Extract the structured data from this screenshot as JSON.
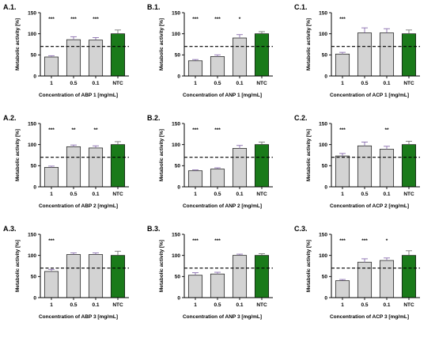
{
  "chart_data": [
    {
      "type": "bar",
      "panel_label": "A.1.",
      "categories": [
        "1",
        "0.5",
        "0.1",
        "NTC"
      ],
      "values": [
        45,
        86,
        85,
        100
      ],
      "errors": [
        3,
        7,
        6,
        9
      ],
      "significance": [
        "***",
        "***",
        "***",
        ""
      ],
      "xlabel": "Concentration of ABP 1 [mg/mL]",
      "ylabel": "Metabolic activity [%]",
      "ylim": [
        0,
        150
      ],
      "yticks": [
        "0",
        "50",
        "100",
        "150"
      ],
      "reference_line": 70,
      "bar_colors": [
        "#d3d3d3",
        "#d3d3d3",
        "#d3d3d3",
        "#1a7a1a"
      ]
    },
    {
      "type": "bar",
      "panel_label": "B.1.",
      "categories": [
        "1",
        "0.5",
        "0.1",
        "NTC"
      ],
      "values": [
        36,
        46,
        90,
        100
      ],
      "errors": [
        3,
        4,
        8,
        5
      ],
      "significance": [
        "***",
        "***",
        "*",
        ""
      ],
      "xlabel": "Concentration of ANP 1 [mg/mL]",
      "ylabel": "Metabolic activity [%]",
      "ylim": [
        0,
        150
      ],
      "yticks": [
        "0",
        "50",
        "100",
        "150"
      ],
      "reference_line": 70,
      "bar_colors": [
        "#d3d3d3",
        "#d3d3d3",
        "#d3d3d3",
        "#1a7a1a"
      ]
    },
    {
      "type": "bar",
      "panel_label": "C.1.",
      "categories": [
        "1",
        "0.5",
        "0.1",
        "NTC"
      ],
      "values": [
        52,
        102,
        102,
        100
      ],
      "errors": [
        4,
        12,
        10,
        9
      ],
      "significance": [
        "***",
        "",
        "",
        ""
      ],
      "xlabel": "Concentration of ACP 1 [mg/mL]",
      "ylabel": "Metabolic activity [%]",
      "ylim": [
        0,
        150
      ],
      "yticks": [
        "0",
        "50",
        "100",
        "150"
      ],
      "reference_line": 70,
      "bar_colors": [
        "#d3d3d3",
        "#d3d3d3",
        "#d3d3d3",
        "#1a7a1a"
      ]
    },
    {
      "type": "bar",
      "panel_label": "A.2.",
      "categories": [
        "1",
        "0.5",
        "0.1",
        "NTC"
      ],
      "values": [
        46,
        95,
        92,
        100
      ],
      "errors": [
        3,
        4,
        5,
        7
      ],
      "significance": [
        "***",
        "**",
        "**",
        ""
      ],
      "xlabel": "Concentration of ABP 2 [mg/mL]",
      "ylabel": "Metabolic activity [%]",
      "ylim": [
        0,
        150
      ],
      "yticks": [
        "0",
        "50",
        "100",
        "150"
      ],
      "reference_line": 70,
      "bar_colors": [
        "#d3d3d3",
        "#d3d3d3",
        "#d3d3d3",
        "#1a7a1a"
      ]
    },
    {
      "type": "bar",
      "panel_label": "B.2.",
      "categories": [
        "1",
        "0.5",
        "0.1",
        "NTC"
      ],
      "values": [
        38,
        42,
        91,
        100
      ],
      "errors": [
        2,
        3,
        7,
        6
      ],
      "significance": [
        "***",
        "***",
        "",
        ""
      ],
      "xlabel": "Concentration of ANP 2 [mg/mL]",
      "ylabel": "Metabolic activity [%]",
      "ylim": [
        0,
        150
      ],
      "yticks": [
        "0",
        "50",
        "100",
        "150"
      ],
      "reference_line": 70,
      "bar_colors": [
        "#d3d3d3",
        "#d3d3d3",
        "#d3d3d3",
        "#1a7a1a"
      ]
    },
    {
      "type": "bar",
      "panel_label": "C.2.",
      "categories": [
        "1",
        "0.5",
        "0.1",
        "NTC"
      ],
      "values": [
        73,
        97,
        89,
        100
      ],
      "errors": [
        6,
        9,
        7,
        8
      ],
      "significance": [
        "***",
        "",
        "**",
        ""
      ],
      "xlabel": "Concentration of ACP 2 [mg/mL]",
      "ylabel": "Metabolic activity [%]",
      "ylim": [
        0,
        150
      ],
      "yticks": [
        "0",
        "50",
        "100",
        "150"
      ],
      "reference_line": 70,
      "bar_colors": [
        "#d3d3d3",
        "#d3d3d3",
        "#d3d3d3",
        "#1a7a1a"
      ]
    },
    {
      "type": "bar",
      "panel_label": "A.3.",
      "categories": [
        "1",
        "0.5",
        "0.1",
        "NTC"
      ],
      "values": [
        62,
        102,
        102,
        100
      ],
      "errors": [
        5,
        4,
        4,
        10
      ],
      "significance": [
        "***",
        "",
        "",
        ""
      ],
      "xlabel": "Concentration of ABP 3 [mg/mL]",
      "ylabel": "Metabolic activity [%]",
      "ylim": [
        0,
        150
      ],
      "yticks": [
        "0",
        "50",
        "100",
        "150"
      ],
      "reference_line": 70,
      "bar_colors": [
        "#d3d3d3",
        "#d3d3d3",
        "#d3d3d3",
        "#1a7a1a"
      ]
    },
    {
      "type": "bar",
      "panel_label": "B.3.",
      "categories": [
        "1",
        "0.5",
        "0.1",
        "NTC"
      ],
      "values": [
        53,
        56,
        100,
        100
      ],
      "errors": [
        6,
        4,
        3,
        4
      ],
      "significance": [
        "***",
        "***",
        "",
        ""
      ],
      "xlabel": "Concentration of ANP 3 [mg/mL]",
      "ylabel": "Metabolic activity [%]",
      "ylim": [
        0,
        150
      ],
      "yticks": [
        "0",
        "50",
        "100",
        "150"
      ],
      "reference_line": 70,
      "bar_colors": [
        "#d3d3d3",
        "#d3d3d3",
        "#d3d3d3",
        "#1a7a1a"
      ]
    },
    {
      "type": "bar",
      "panel_label": "C.3.",
      "categories": [
        "1",
        "0.5",
        "0.1",
        "NTC"
      ],
      "values": [
        40,
        84,
        88,
        100
      ],
      "errors": [
        3,
        8,
        6,
        11
      ],
      "significance": [
        "***",
        "***",
        "*",
        ""
      ],
      "xlabel": "Concentration of ACP 3 [mg/mL]",
      "ylabel": "Metabolic activity [%]",
      "ylim": [
        0,
        150
      ],
      "yticks": [
        "0",
        "50",
        "100",
        "150"
      ],
      "reference_line": 70,
      "bar_colors": [
        "#d3d3d3",
        "#d3d3d3",
        "#d3d3d3",
        "#1a7a1a"
      ]
    }
  ]
}
